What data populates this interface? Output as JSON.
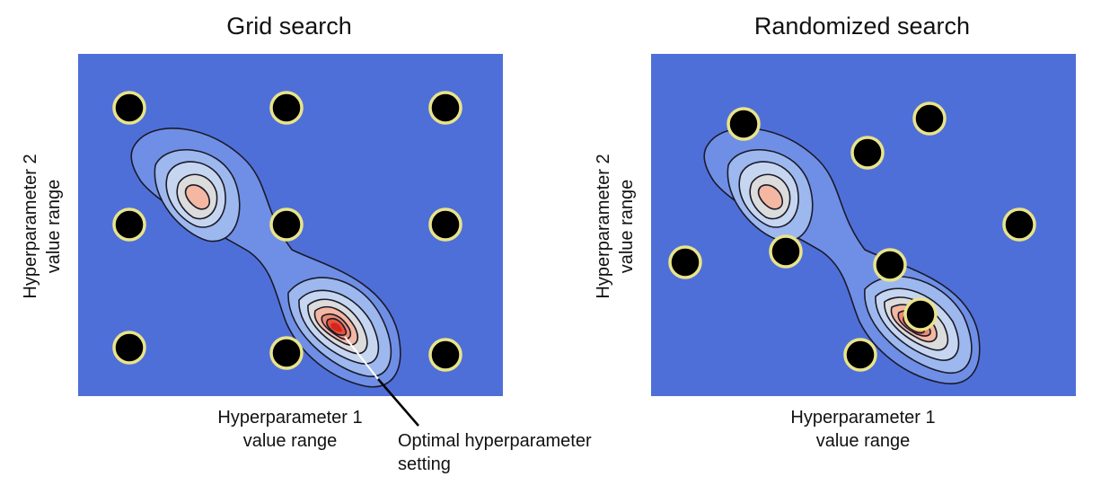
{
  "grid": {
    "title": "Grid search",
    "xlabel_1": "Hyperparameter 1",
    "xlabel_2": "value range",
    "ylabel_1": "Hyperparameter 2",
    "ylabel_2": "value range"
  },
  "randomized": {
    "title": "Randomized search",
    "xlabel_1": "Hyperparameter 1",
    "xlabel_2": "value range",
    "ylabel_1": "Hyperparameter 2",
    "ylabel_2": "value range"
  },
  "callout": {
    "line_1": "Optimal hyperparameter",
    "line_2": "setting"
  },
  "colors": {
    "background": "#4f6fd8",
    "contour_levels": [
      "#6f8fe6",
      "#9db8ee",
      "#c7d6f0",
      "#dcdcdc",
      "#f3b7a2",
      "#ec8a72",
      "#e25440",
      "#d6251c"
    ],
    "point_fill": "#000000",
    "point_ring": "#e9e48a"
  }
}
